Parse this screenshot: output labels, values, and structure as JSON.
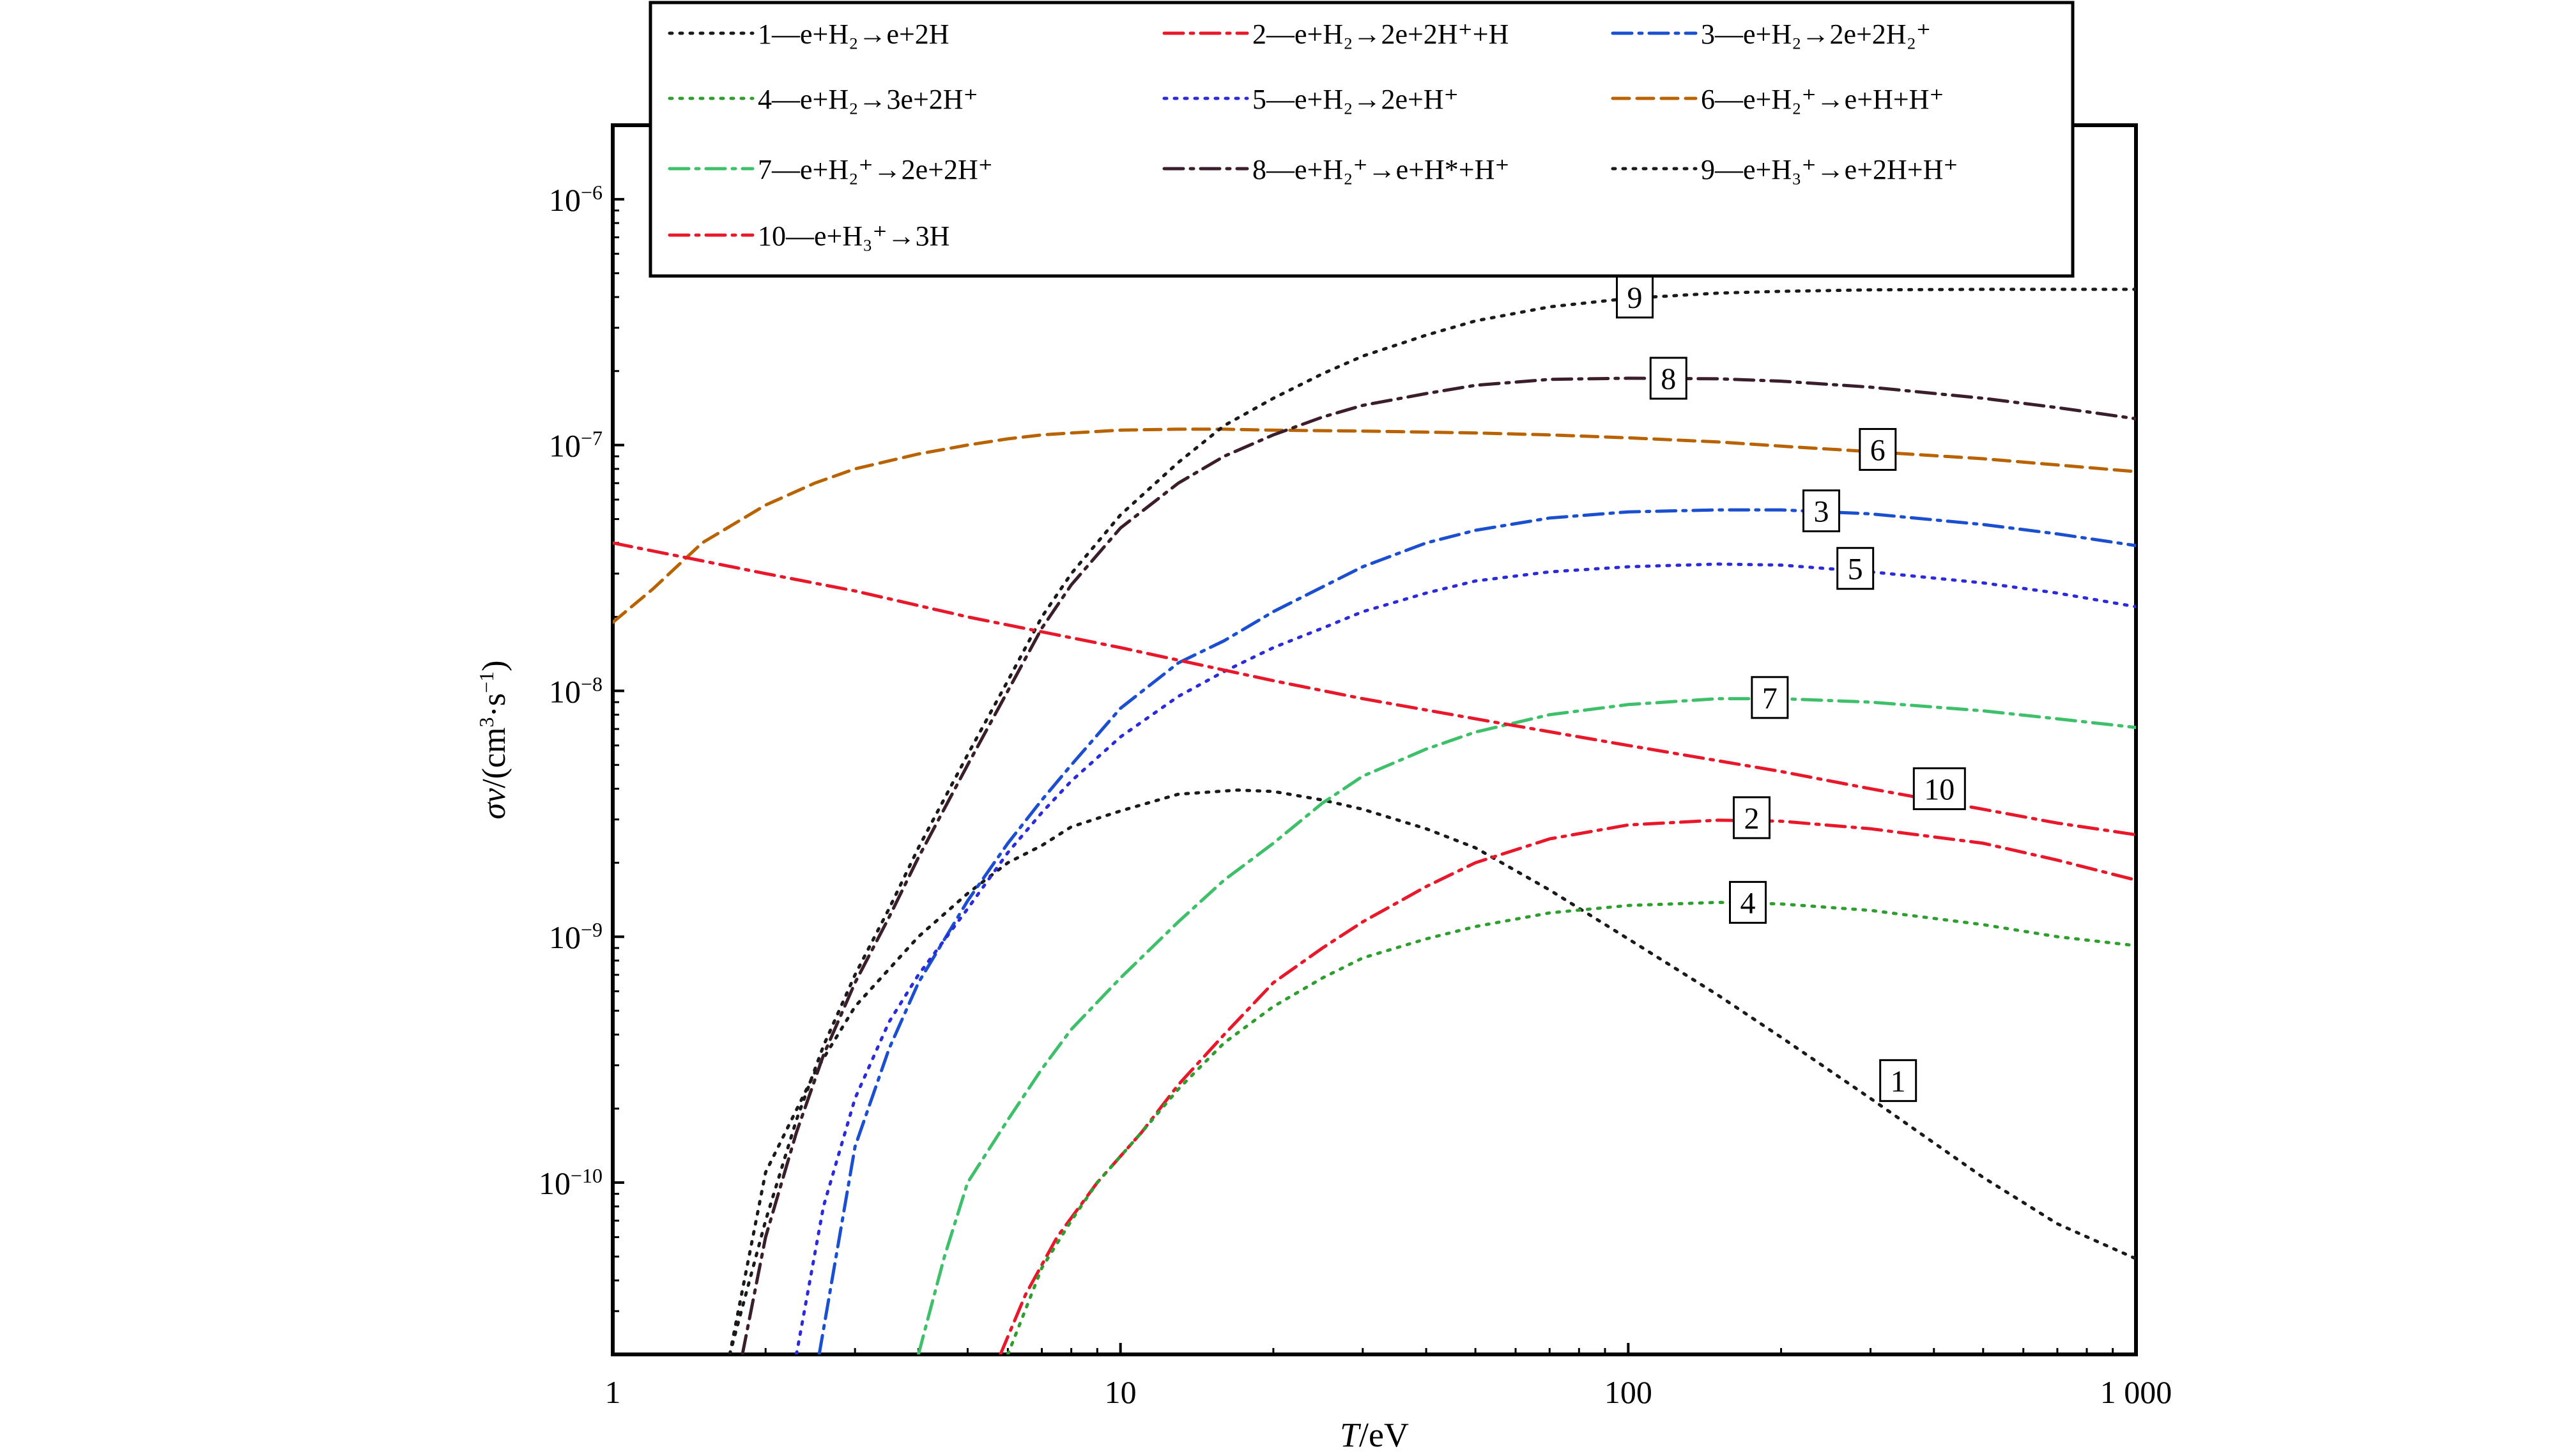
{
  "chart_data": {
    "type": "line",
    "title": "",
    "xlabel": "T/eV",
    "ylabel": "σv/(cm³·s⁻¹)",
    "xscale": "log",
    "yscale": "log",
    "xlim": [
      1,
      1000
    ],
    "ylim": [
      2e-11,
      2e-06
    ],
    "grid": false,
    "legend_position": "top, overlapping plot area",
    "x_ticks": [
      {
        "value": 1,
        "label": "1"
      },
      {
        "value": 10,
        "label": "10"
      },
      {
        "value": 100,
        "label": "100"
      },
      {
        "value": 1000,
        "label": "1 000"
      }
    ],
    "y_ticks": [
      {
        "value": 1e-10,
        "base": "10",
        "exp": "−10"
      },
      {
        "value": 1e-09,
        "base": "10",
        "exp": "−9"
      },
      {
        "value": 1e-08,
        "base": "10",
        "exp": "−8"
      },
      {
        "value": 1e-07,
        "base": "10",
        "exp": "−7"
      },
      {
        "value": 1e-06,
        "base": "10",
        "exp": "−6"
      }
    ],
    "series": [
      {
        "id": "1",
        "legend": "1—e+H₂→e+2H",
        "color": "#1a1a1a",
        "dash": "dotted",
        "x": [
          1.7,
          2,
          2.5,
          3,
          4,
          5,
          6,
          7,
          8,
          10,
          13,
          17,
          20,
          25,
          30,
          40,
          50,
          70,
          100,
          150,
          200,
          300,
          500,
          700,
          1000
        ],
        "y": [
          2e-11,
          1.1e-10,
          2.8e-10,
          5.2e-10,
          1e-09,
          1.5e-09,
          2e-09,
          2.35e-09,
          2.8e-09,
          3.25e-09,
          3.8e-09,
          3.95e-09,
          3.9e-09,
          3.6e-09,
          3.3e-09,
          2.75e-09,
          2.3e-09,
          1.55e-09,
          9.8e-10,
          5.8e-10,
          3.9e-10,
          2.2e-10,
          1.05e-10,
          6.8e-11,
          4.9e-11
        ]
      },
      {
        "id": "2",
        "legend": "2—e+H₂→2e+2H⁺+H",
        "color": "#e8182a",
        "dash": "dashdot",
        "x": [
          5.8,
          6.5,
          7.5,
          9,
          11,
          13,
          16,
          20,
          25,
          30,
          40,
          50,
          70,
          100,
          150,
          200,
          300,
          500,
          700,
          1000
        ],
        "y": [
          2e-11,
          3.5e-11,
          6e-11,
          1e-10,
          1.6e-10,
          2.5e-10,
          4e-10,
          6.5e-10,
          9e-10,
          1.15e-09,
          1.6e-09,
          2e-09,
          2.5e-09,
          2.85e-09,
          2.98e-09,
          2.95e-09,
          2.75e-09,
          2.4e-09,
          2.05e-09,
          1.7e-09
        ]
      },
      {
        "id": "3",
        "legend": "3—e+H₂→2e+2H₂⁺",
        "color": "#1a4fd0",
        "dash": "dashdot",
        "x": [
          2.55,
          3,
          3.5,
          4,
          5,
          6,
          7,
          8,
          10,
          13,
          16,
          20,
          25,
          30,
          40,
          50,
          70,
          100,
          150,
          200,
          300,
          500,
          700,
          1000
        ],
        "y": [
          2e-11,
          1.4e-10,
          3.5e-10,
          6.5e-10,
          1.4e-09,
          2.4e-09,
          3.6e-09,
          5e-09,
          8.5e-09,
          1.3e-08,
          1.6e-08,
          2.1e-08,
          2.65e-08,
          3.2e-08,
          4e-08,
          4.5e-08,
          5.05e-08,
          5.35e-08,
          5.45e-08,
          5.45e-08,
          5.25e-08,
          4.75e-08,
          4.35e-08,
          3.9e-08
        ]
      },
      {
        "id": "4",
        "legend": "4—e+H₂→3e+2H⁺",
        "color": "#2e9e2e",
        "dash": "dotted",
        "x": [
          6,
          7,
          8,
          9,
          11,
          13,
          16,
          20,
          25,
          30,
          40,
          50,
          70,
          100,
          150,
          200,
          300,
          500,
          700,
          1000
        ],
        "y": [
          2e-11,
          4.5e-11,
          7e-11,
          1e-10,
          1.6e-10,
          2.4e-10,
          3.7e-10,
          5.2e-10,
          6.8e-10,
          8.2e-10,
          9.8e-10,
          1.1e-09,
          1.25e-09,
          1.34e-09,
          1.38e-09,
          1.36e-09,
          1.28e-09,
          1.12e-09,
          1e-09,
          9.2e-10
        ]
      },
      {
        "id": "5",
        "legend": "5—e+H₂→2e+H⁺",
        "color": "#2b2bd9",
        "dash": "dotted",
        "x": [
          2.3,
          2.6,
          3,
          3.5,
          4,
          5,
          6,
          7,
          8,
          10,
          13,
          16,
          20,
          25,
          30,
          40,
          50,
          70,
          100,
          150,
          200,
          300,
          500,
          700,
          1000
        ],
        "y": [
          2e-11,
          8e-11,
          2.2e-10,
          4.5e-10,
          7e-10,
          1.3e-09,
          2.2e-09,
          3.2e-09,
          4.3e-09,
          6.5e-09,
          9.5e-09,
          1.2e-08,
          1.5e-08,
          1.8e-08,
          2.1e-08,
          2.5e-08,
          2.8e-08,
          3.05e-08,
          3.2e-08,
          3.28e-08,
          3.25e-08,
          3.05e-08,
          2.75e-08,
          2.5e-08,
          2.2e-08
        ]
      },
      {
        "id": "6",
        "legend": "6—e+H₂⁺→e+H+H⁺",
        "color": "#b86200",
        "dash": "dashed",
        "x": [
          1,
          1.2,
          1.5,
          2,
          2.5,
          3,
          4,
          5,
          6,
          7,
          8,
          10,
          13,
          16,
          20,
          30,
          50,
          70,
          100,
          150,
          200,
          300,
          500,
          700,
          1000
        ],
        "y": [
          1.9e-08,
          2.6e-08,
          4e-08,
          5.7e-08,
          7e-08,
          8e-08,
          9.2e-08,
          1e-07,
          1.06e-07,
          1.1e-07,
          1.12e-07,
          1.15e-07,
          1.16e-07,
          1.16e-07,
          1.15e-07,
          1.14e-07,
          1.12e-07,
          1.1e-07,
          1.07e-07,
          1.03e-07,
          9.9e-08,
          9.4e-08,
          8.8e-08,
          8.3e-08,
          7.8e-08
        ]
      },
      {
        "id": "7",
        "legend": "7—e+H₂⁺→2e+2H⁺",
        "color": "#3ec06a",
        "dash": "dashdot",
        "x": [
          4,
          4.5,
          5,
          6,
          7,
          8,
          10,
          13,
          16,
          20,
          25,
          30,
          40,
          50,
          70,
          100,
          150,
          200,
          300,
          500,
          700,
          1000
        ],
        "y": [
          2e-11,
          5e-11,
          1e-10,
          1.8e-10,
          2.9e-10,
          4.2e-10,
          6.8e-10,
          1.15e-09,
          1.7e-09,
          2.4e-09,
          3.5e-09,
          4.5e-09,
          5.8e-09,
          6.8e-09,
          8e-09,
          8.8e-09,
          9.3e-09,
          9.3e-09,
          9e-09,
          8.3e-09,
          7.7e-09,
          7.1e-09
        ]
      },
      {
        "id": "8",
        "legend": "8—e+H₂⁺→e+H*+H⁺",
        "color": "#3a1e2c",
        "dash": "dashdot",
        "x": [
          1.8,
          2,
          2.3,
          2.6,
          3,
          3.5,
          4,
          5,
          6,
          7,
          8,
          10,
          13,
          16,
          20,
          25,
          30,
          40,
          50,
          70,
          100,
          150,
          200,
          300,
          500,
          700,
          1000
        ],
        "y": [
          2e-11,
          6e-11,
          1.6e-10,
          3.3e-10,
          6.5e-10,
          1.2e-09,
          2.1e-09,
          5e-09,
          1e-08,
          1.8e-08,
          2.7e-08,
          4.6e-08,
          7e-08,
          9e-08,
          1.1e-07,
          1.3e-07,
          1.45e-07,
          1.62e-07,
          1.75e-07,
          1.85e-07,
          1.87e-07,
          1.86e-07,
          1.82e-07,
          1.72e-07,
          1.55e-07,
          1.42e-07,
          1.28e-07
        ]
      },
      {
        "id": "9",
        "legend": "9—e+H₃⁺→e+2H+H⁺",
        "color": "#1a1a1a",
        "dash": "dotted",
        "x": [
          1.7,
          2,
          2.3,
          2.6,
          3,
          3.5,
          4,
          5,
          6,
          7,
          8,
          10,
          13,
          16,
          20,
          25,
          30,
          40,
          50,
          70,
          100,
          150,
          200,
          300,
          500,
          700,
          1000
        ],
        "y": [
          2e-11,
          7e-11,
          1.8e-10,
          3.6e-10,
          7e-10,
          1.3e-09,
          2.3e-09,
          5.5e-09,
          1.1e-08,
          2e-08,
          3e-08,
          5.2e-08,
          8.5e-08,
          1.2e-07,
          1.55e-07,
          1.95e-07,
          2.3e-07,
          2.8e-07,
          3.2e-07,
          3.65e-07,
          3.95e-07,
          4.15e-07,
          4.22e-07,
          4.28e-07,
          4.3e-07,
          4.3e-07,
          4.3e-07
        ]
      },
      {
        "id": "10",
        "legend": "10—e+H₃⁺→3H",
        "color": "#e8182a",
        "dash": "dashdot",
        "x": [
          1,
          2,
          3,
          5,
          10,
          20,
          30,
          50,
          100,
          200,
          300,
          500,
          700,
          1000
        ],
        "y": [
          4e-08,
          3e-08,
          2.55e-08,
          2e-08,
          1.5e-08,
          1.1e-08,
          9.3e-09,
          7.7e-09,
          6e-09,
          4.7e-09,
          4e-09,
          3.3e-09,
          2.9e-09,
          2.6e-09
        ]
      }
    ],
    "annotations": [
      {
        "text": "1",
        "x": 340,
        "y": 2.6e-10
      },
      {
        "text": "2",
        "x": 175,
        "y": 3.05e-09
      },
      {
        "text": "3",
        "x": 240,
        "y": 5.4e-08
      },
      {
        "text": "4",
        "x": 172,
        "y": 1.38e-09
      },
      {
        "text": "5",
        "x": 280,
        "y": 3.15e-08
      },
      {
        "text": "6",
        "x": 310,
        "y": 9.6e-08
      },
      {
        "text": "7",
        "x": 190,
        "y": 9.4e-09
      },
      {
        "text": "8",
        "x": 120,
        "y": 1.87e-07
      },
      {
        "text": "9",
        "x": 103,
        "y": 4e-07
      },
      {
        "text": "10",
        "x": 410,
        "y": 4e-09
      }
    ]
  }
}
